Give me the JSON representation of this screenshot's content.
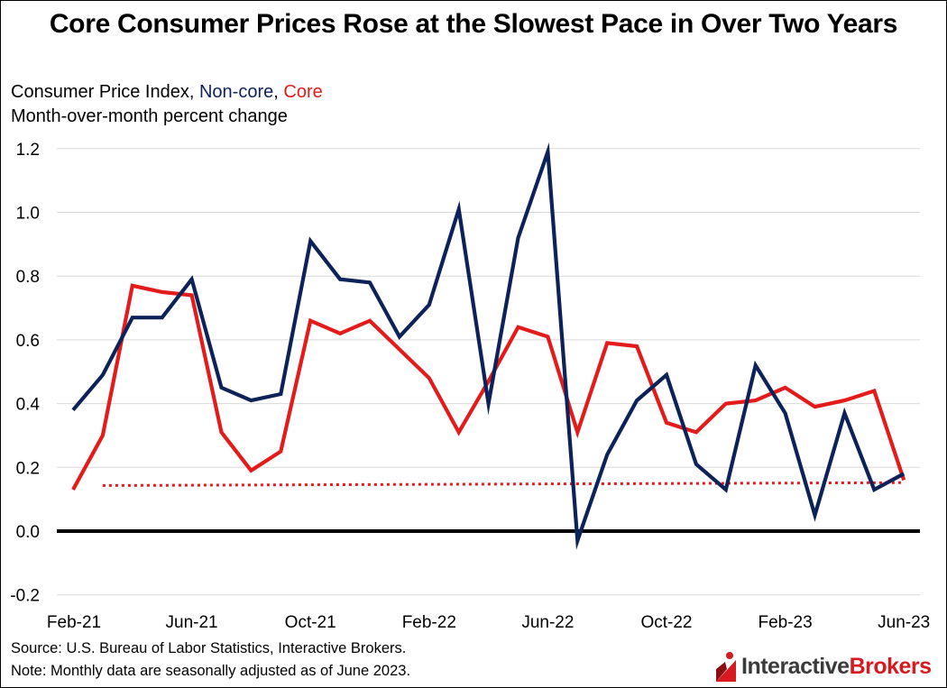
{
  "title": "Core Consumer Prices Rose at the Slowest Pace in Over Two Years",
  "subtitle": {
    "line1_prefix": "Consumer Price Index, ",
    "line1_noncore": "Non-core",
    "line1_sep": ", ",
    "line1_core": "Core",
    "line2": "Month-over-month percent change"
  },
  "footer": {
    "source": "Source: U.S. Bureau of Labor Statistics, Interactive Brokers.",
    "note": "Note: Monthly data are seasonally adjusted as of June 2023."
  },
  "logo": {
    "part1": "Interactive",
    "part2": "Brokers"
  },
  "colors": {
    "noncore": "#0d2259",
    "core": "#e31b1b",
    "trend": "#e31b1b",
    "zero_line": "#000000",
    "grid": "#d9d9d9"
  },
  "chart_data": {
    "type": "line",
    "x": [
      "Feb-21",
      "Mar-21",
      "Apr-21",
      "May-21",
      "Jun-21",
      "Jul-21",
      "Aug-21",
      "Sep-21",
      "Oct-21",
      "Nov-21",
      "Dec-21",
      "Jan-22",
      "Feb-22",
      "Mar-22",
      "Apr-22",
      "May-22",
      "Jun-22",
      "Jul-22",
      "Aug-22",
      "Sep-22",
      "Oct-22",
      "Nov-22",
      "Dec-22",
      "Jan-23",
      "Feb-23",
      "Mar-23",
      "Apr-23",
      "May-23",
      "Jun-23"
    ],
    "x_tick_labels": [
      "Feb-21",
      "Jun-21",
      "Oct-21",
      "Feb-22",
      "Jun-22",
      "Oct-22",
      "Feb-23",
      "Jun-23"
    ],
    "y_ticks": [
      "1.2",
      "1.0",
      "0.8",
      "0.6",
      "0.4",
      "0.2",
      "0.0",
      "-0.2"
    ],
    "ylim": [
      -0.2,
      1.2
    ],
    "grid": true,
    "series": [
      {
        "name": "Non-core",
        "color": "#0d2259",
        "values": [
          0.38,
          0.49,
          0.67,
          0.67,
          0.79,
          0.45,
          0.41,
          0.43,
          0.91,
          0.79,
          0.78,
          0.61,
          0.71,
          1.01,
          0.4,
          0.92,
          1.19,
          -0.03,
          0.24,
          0.41,
          0.49,
          0.21,
          0.13,
          0.52,
          0.37,
          0.05,
          0.37,
          0.13,
          0.18
        ]
      },
      {
        "name": "Core",
        "color": "#e31b1b",
        "values": [
          0.13,
          0.3,
          0.77,
          0.75,
          0.74,
          0.31,
          0.19,
          0.25,
          0.66,
          0.62,
          0.66,
          0.57,
          0.48,
          0.31,
          0.47,
          0.64,
          0.61,
          0.31,
          0.59,
          0.58,
          0.34,
          0.31,
          0.4,
          0.41,
          0.45,
          0.39,
          0.41,
          0.44,
          0.16
        ]
      }
    ],
    "trend_line": {
      "style": "dotted",
      "color": "#e31b1b",
      "from": "Mar-21",
      "to": "Jun-23",
      "values": [
        0.143,
        0.152
      ]
    }
  }
}
